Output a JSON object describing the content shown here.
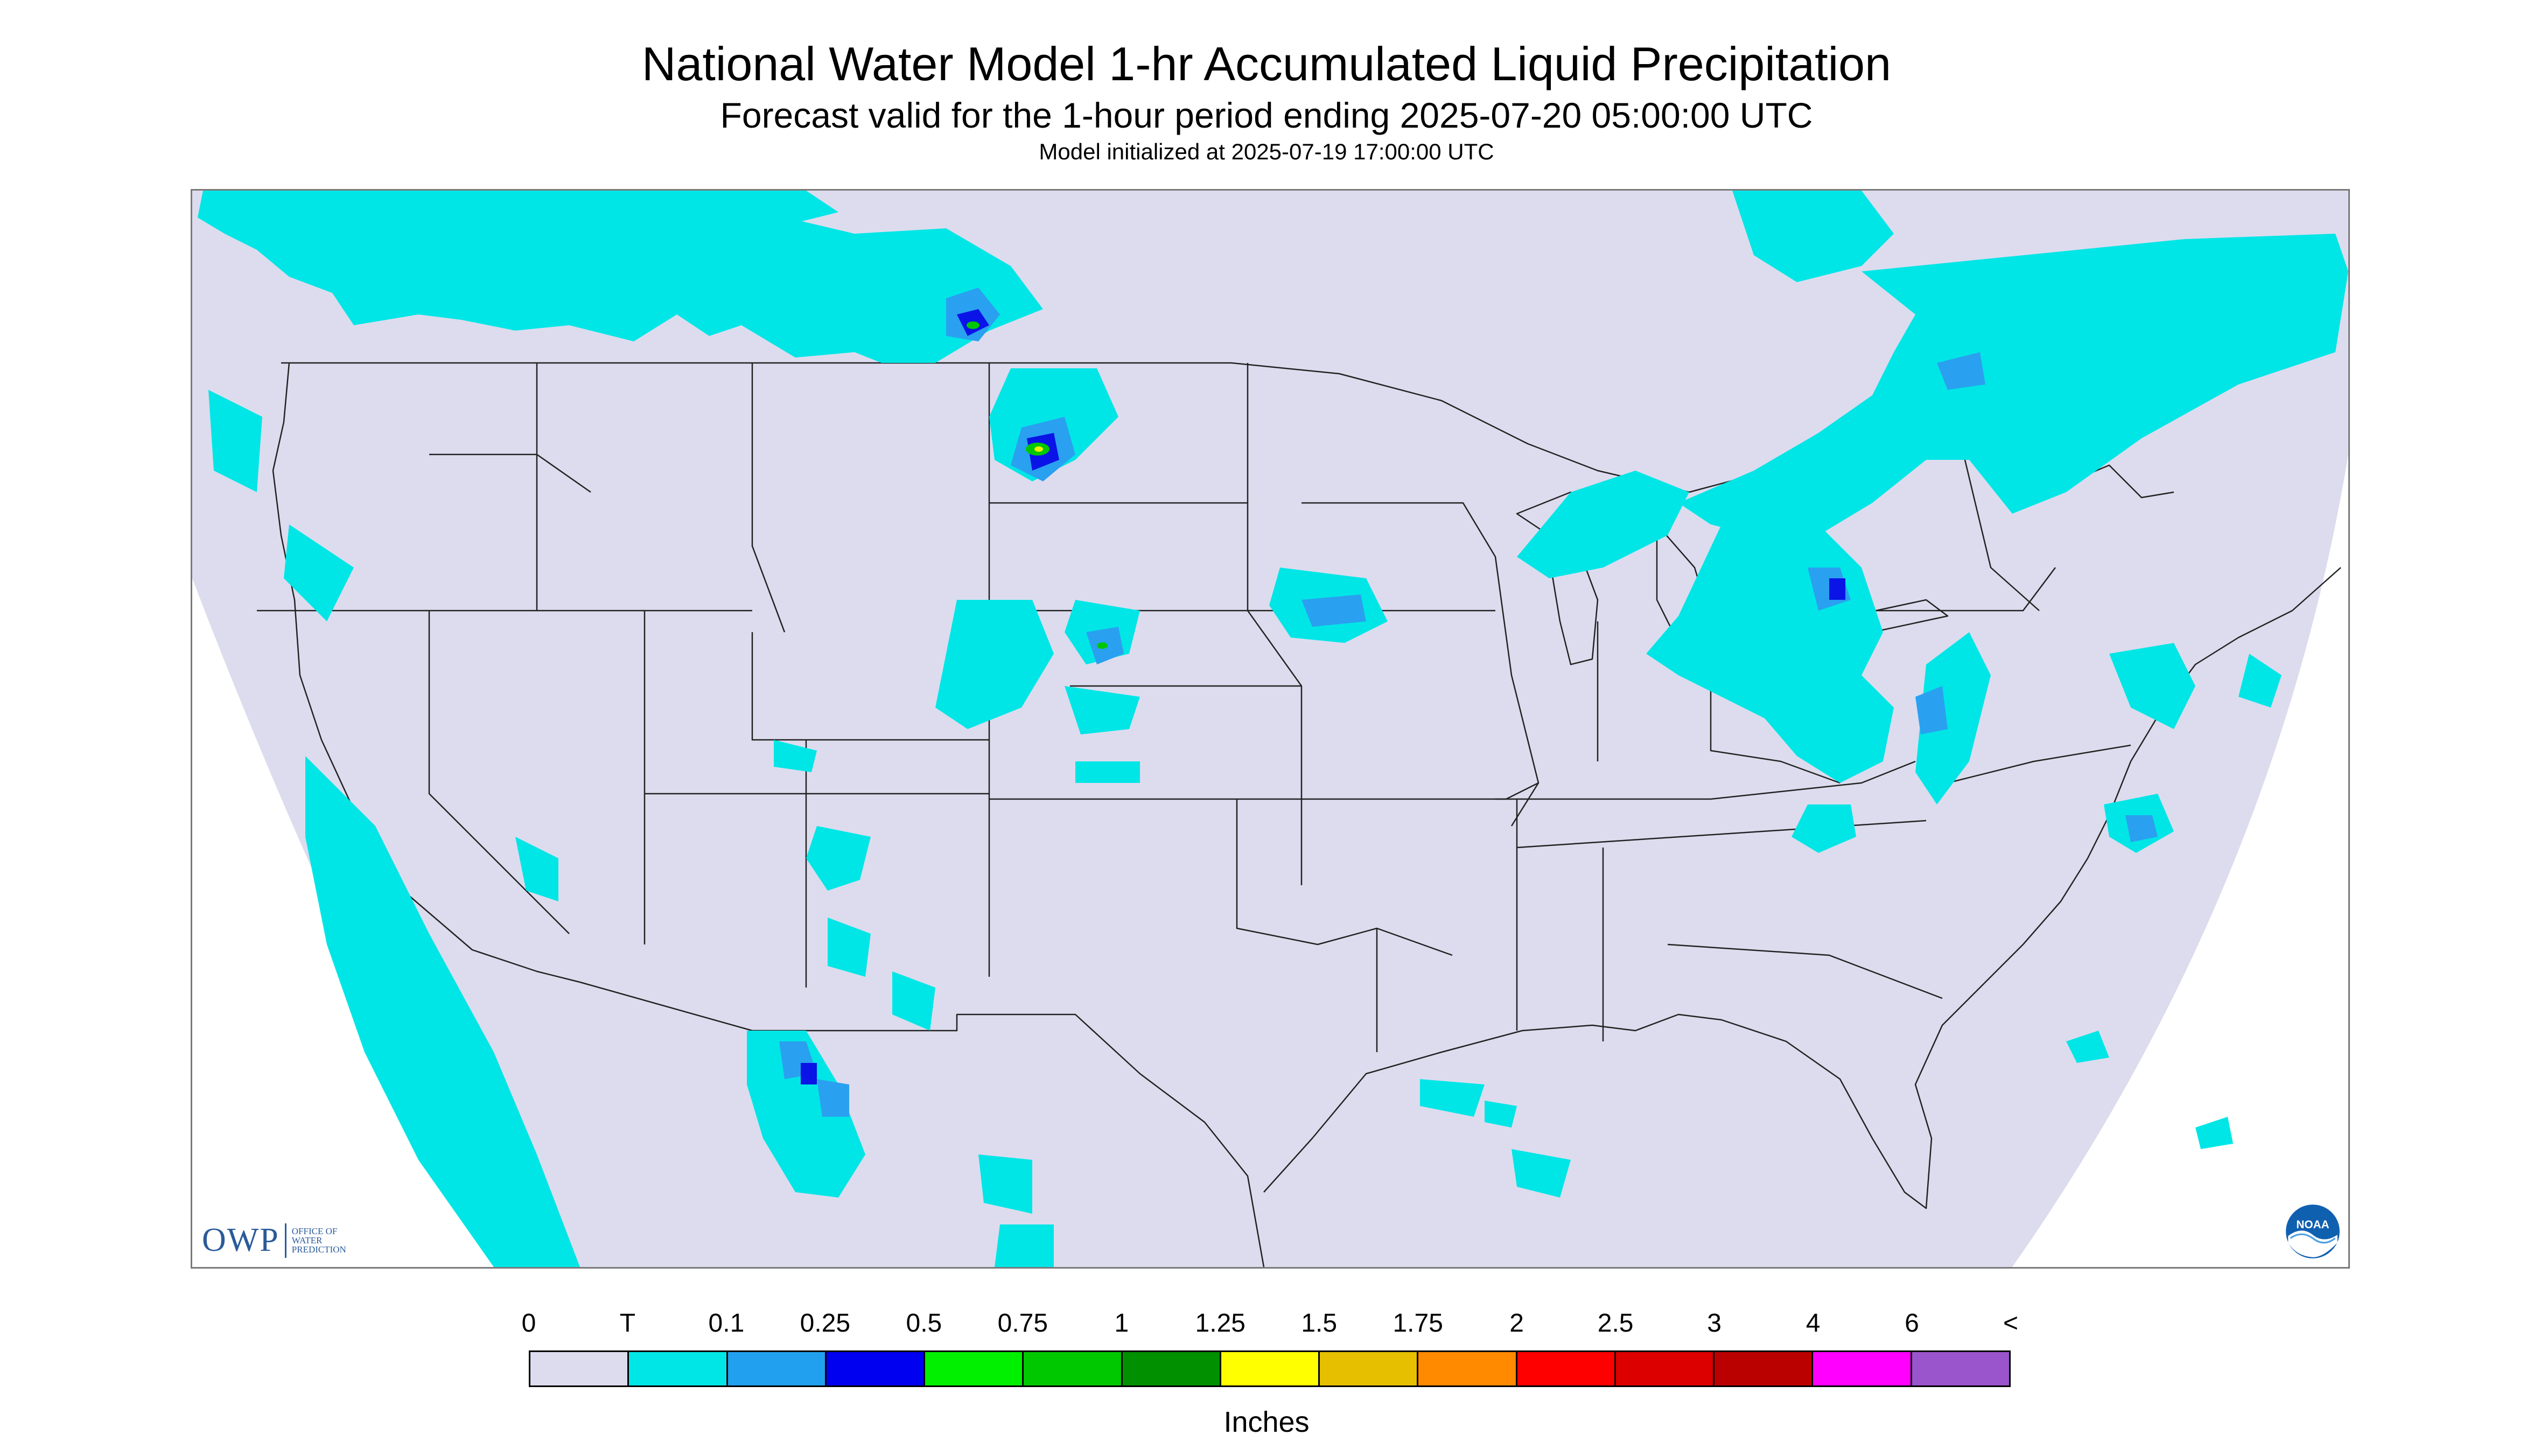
{
  "title": "National Water Model 1-hr Accumulated Liquid Precipitation",
  "subtitle": "Forecast valid for the 1-hour period ending 2025-07-20 05:00:00 UTC",
  "init_line": "Model initialized at 2025-07-19 17:00:00 UTC",
  "logos": {
    "owp_mark": "OWP",
    "owp_text": "Office of Water Prediction",
    "noaa_text": "NOAA"
  },
  "colors": {
    "domain": "#dcdcee",
    "outside": "#ffffff",
    "boundary": "#222222",
    "trace": "#00e5e5",
    "light": "#2aa0f0",
    "medium": "#0a14e6",
    "green": "#00c800",
    "yellow": "#f0f000"
  },
  "legend": {
    "labels": [
      "0",
      "T",
      "0.1",
      "0.25",
      "0.5",
      "0.75",
      "1",
      "1.25",
      "1.5",
      "1.75",
      "2",
      "2.5",
      "3",
      "4",
      "6",
      "<"
    ],
    "colors": [
      "#dcdcee",
      "#00e6e6",
      "#22a0f0",
      "#0000f0",
      "#00f000",
      "#00c800",
      "#009000",
      "#ffff00",
      "#e6c000",
      "#ff8a00",
      "#ff0000",
      "#dd0000",
      "#bb0000",
      "#ff00ff",
      "#9a55cc"
    ],
    "units": "Inches"
  }
}
